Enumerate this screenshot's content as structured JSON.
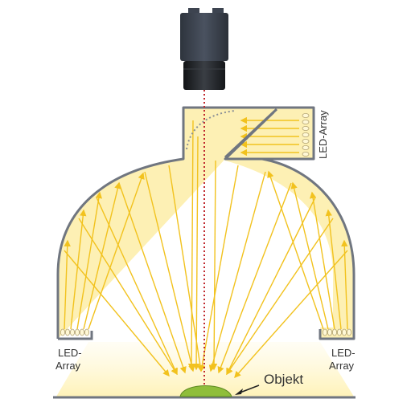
{
  "labels": {
    "led_array_top": "LED-Array",
    "led_array_left_line1": "LED-",
    "led_array_left_line2": "Array",
    "led_array_right_line1": "LED-",
    "led_array_right_line2": "Array",
    "object": "Objekt"
  },
  "colors": {
    "dome_fill": "#fdf0b4",
    "dome_outline": "#707680",
    "ray": "#f2c21e",
    "optical_axis": "#c0282d",
    "object": "#8fbe3a",
    "camera_body": "#3d4450",
    "lens": "#25282c",
    "floor": "#707680"
  }
}
